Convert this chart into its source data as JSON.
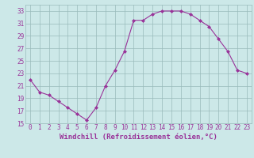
{
  "x": [
    0,
    1,
    2,
    3,
    4,
    5,
    6,
    7,
    8,
    9,
    10,
    11,
    12,
    13,
    14,
    15,
    16,
    17,
    18,
    19,
    20,
    21,
    22,
    23
  ],
  "y": [
    22.0,
    20.0,
    19.5,
    18.5,
    17.5,
    16.5,
    15.5,
    17.5,
    21.0,
    23.5,
    26.5,
    31.5,
    31.5,
    32.5,
    33.0,
    33.0,
    33.0,
    32.5,
    31.5,
    30.5,
    28.5,
    26.5,
    23.5,
    23.0
  ],
  "xlim": [
    -0.5,
    23.5
  ],
  "ylim": [
    15,
    34
  ],
  "yticks": [
    15,
    17,
    19,
    21,
    23,
    25,
    27,
    29,
    31,
    33
  ],
  "xticks": [
    0,
    1,
    2,
    3,
    4,
    5,
    6,
    7,
    8,
    9,
    10,
    11,
    12,
    13,
    14,
    15,
    16,
    17,
    18,
    19,
    20,
    21,
    22,
    23
  ],
  "xlabel": "Windchill (Refroidissement éolien,°C)",
  "line_color": "#993399",
  "marker": "D",
  "marker_size": 2.0,
  "bg_color": "#cce8e8",
  "grid_color": "#99bbbb",
  "tick_label_color": "#993399",
  "axis_label_color": "#993399",
  "font_size_tick": 5.5,
  "font_size_xlabel": 6.5
}
